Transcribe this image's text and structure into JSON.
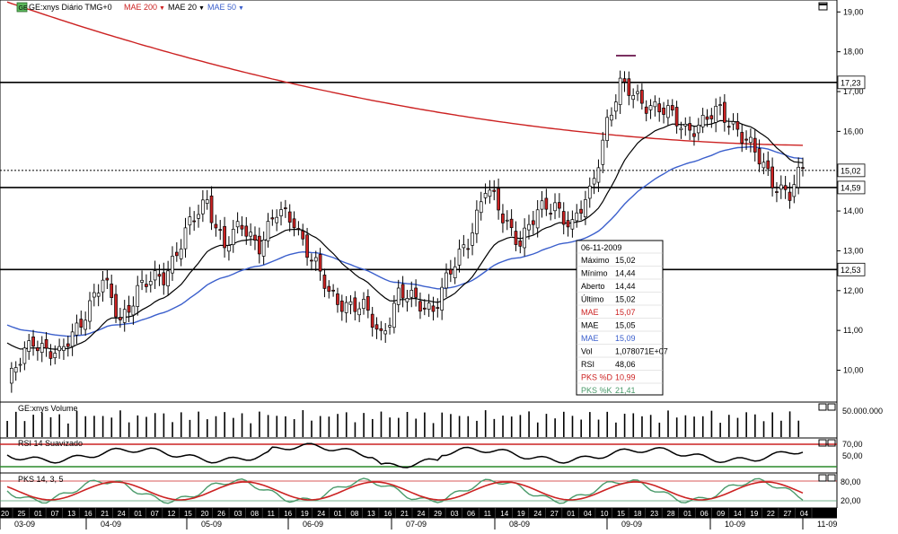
{
  "header": {
    "symbol_tag": "GE",
    "title": "GE:xnys Diário TMG+0",
    "studies": [
      {
        "label": "MAE 200",
        "color": "#cc2222"
      },
      {
        "label": "MAE 20",
        "color": "#000000"
      },
      {
        "label": "MAE 50",
        "color": "#3b5fcc"
      }
    ]
  },
  "colors": {
    "up": "#000000",
    "down": "#cc2222",
    "mae200": "#cc2222",
    "mae20": "#000000",
    "mae50": "#3b5fcc",
    "pks_d": "#cc2222",
    "pks_k": "#4a9a6a",
    "rsi": "#000000"
  },
  "price_axis": [
    "19,00",
    "18,00",
    "17,00",
    "16,00",
    "15,00",
    "14,00",
    "13,00",
    "12,00",
    "11,00",
    "10,00"
  ],
  "level_tags": [
    "17,23",
    "15,02",
    "14,59",
    "12,53"
  ],
  "info_box": {
    "date": "06-11-2009",
    "rows": [
      {
        "label": "Máximo",
        "value": "15,02",
        "color": "#000000"
      },
      {
        "label": "Mínimo",
        "value": "14,44",
        "color": "#000000"
      },
      {
        "label": "Aberto",
        "value": "14,44",
        "color": "#000000"
      },
      {
        "label": "Último",
        "value": "15,02",
        "color": "#000000"
      },
      {
        "label": "MAE",
        "value": "15,07",
        "color": "#cc2222"
      },
      {
        "label": "MAE",
        "value": "15,05",
        "color": "#000000"
      },
      {
        "label": "MAE",
        "value": "15,09",
        "color": "#3b5fcc"
      },
      {
        "label": "Vol",
        "value": "1,078071E+07",
        "color": "#000000"
      },
      {
        "label": "RSI",
        "value": "48,06",
        "color": "#000000"
      },
      {
        "label": "PKS %D",
        "value": "10,99",
        "color": "#cc2222"
      },
      {
        "label": "PKS %K",
        "value": "21,41",
        "color": "#4a9a6a"
      }
    ]
  },
  "volume_panel": {
    "title": "GE:xnys Volume",
    "axis": [
      "50.000.000"
    ]
  },
  "rsi_panel": {
    "title": "RSI 14 Suavizado",
    "axis": [
      "70,00",
      "50,00"
    ]
  },
  "pks_panel": {
    "title": "PKS 14, 3, 5",
    "axis": [
      "80,00",
      "20,00"
    ]
  },
  "day_ticks": [
    "20",
    "25",
    "01",
    "07",
    "13",
    "16",
    "21",
    "24",
    "01",
    "07",
    "12",
    "15",
    "20",
    "26",
    "03",
    "08",
    "11",
    "16",
    "19",
    "24",
    "01",
    "08",
    "13",
    "16",
    "21",
    "24",
    "29",
    "03",
    "06",
    "11",
    "14",
    "19",
    "24",
    "27",
    "01",
    "04",
    "10",
    "15",
    "18",
    "23",
    "28",
    "01",
    "06",
    "09",
    "14",
    "19",
    "22",
    "27",
    "04"
  ],
  "month_ticks": [
    "03-09",
    "04-09",
    "05-09",
    "06-09",
    "07-09",
    "08-09",
    "09-09",
    "10-09",
    "11-09"
  ],
  "chart_data": {
    "type": "candlestick",
    "title": "GE:xnys Diário TMG+0",
    "ylim": [
      9.2,
      19.3
    ],
    "horizontal_levels": [
      17.23,
      15.02,
      14.59,
      12.53
    ],
    "anchors": [
      {
        "i": 0,
        "c": 9.6
      },
      {
        "i": 6,
        "c": 10.8
      },
      {
        "i": 12,
        "c": 10.3
      },
      {
        "i": 18,
        "c": 11.5
      },
      {
        "i": 22,
        "c": 12.2
      },
      {
        "i": 26,
        "c": 11.3
      },
      {
        "i": 30,
        "c": 12.0
      },
      {
        "i": 36,
        "c": 12.4
      },
      {
        "i": 42,
        "c": 13.6
      },
      {
        "i": 46,
        "c": 14.3
      },
      {
        "i": 50,
        "c": 13.1
      },
      {
        "i": 54,
        "c": 13.6
      },
      {
        "i": 58,
        "c": 13.2
      },
      {
        "i": 62,
        "c": 13.9
      },
      {
        "i": 66,
        "c": 13.8
      },
      {
        "i": 70,
        "c": 12.8
      },
      {
        "i": 74,
        "c": 11.9
      },
      {
        "i": 78,
        "c": 11.7
      },
      {
        "i": 82,
        "c": 11.5
      },
      {
        "i": 86,
        "c": 10.9
      },
      {
        "i": 90,
        "c": 11.9
      },
      {
        "i": 94,
        "c": 11.7
      },
      {
        "i": 98,
        "c": 11.6
      },
      {
        "i": 102,
        "c": 12.4
      },
      {
        "i": 106,
        "c": 13.3
      },
      {
        "i": 110,
        "c": 14.6
      },
      {
        "i": 114,
        "c": 13.8
      },
      {
        "i": 118,
        "c": 13.3
      },
      {
        "i": 122,
        "c": 13.9
      },
      {
        "i": 126,
        "c": 14.2
      },
      {
        "i": 130,
        "c": 13.6
      },
      {
        "i": 134,
        "c": 14.4
      },
      {
        "i": 138,
        "c": 16.3
      },
      {
        "i": 141,
        "c": 17.1
      },
      {
        "i": 144,
        "c": 16.9
      },
      {
        "i": 148,
        "c": 16.7
      },
      {
        "i": 152,
        "c": 16.4
      },
      {
        "i": 156,
        "c": 16.1
      },
      {
        "i": 160,
        "c": 16.2
      },
      {
        "i": 164,
        "c": 16.5
      },
      {
        "i": 168,
        "c": 16.1
      },
      {
        "i": 172,
        "c": 15.4
      },
      {
        "i": 176,
        "c": 14.8
      },
      {
        "i": 180,
        "c": 14.4
      },
      {
        "i": 183,
        "c": 15.0
      }
    ]
  }
}
